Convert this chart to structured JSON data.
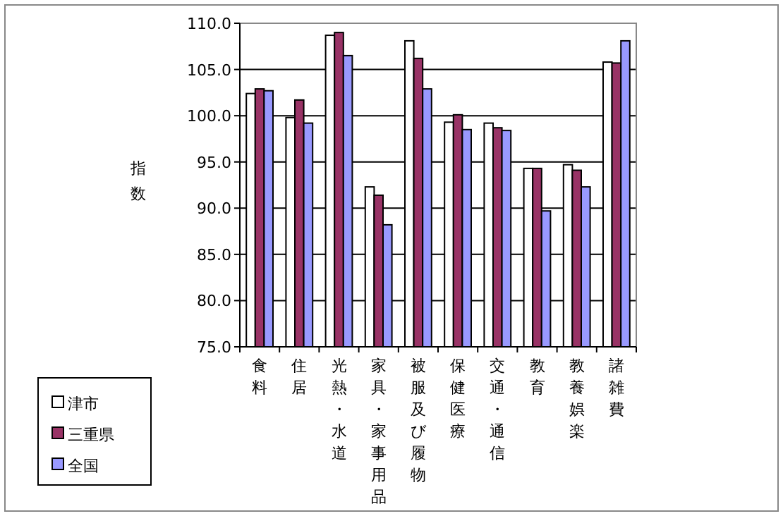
{
  "chart_data": {
    "type": "bar",
    "ylabel": "指数",
    "categories": [
      "食料",
      "住居",
      "光熱・水道",
      "家具・家事用品",
      "被服及び履物",
      "保健医療",
      "交通・通信",
      "教育",
      "教養娯楽",
      "諸雑費"
    ],
    "series": [
      {
        "name": "津市",
        "color": "#ffffff",
        "values": [
          102.4,
          99.8,
          108.7,
          92.3,
          108.1,
          99.3,
          99.2,
          94.3,
          94.7,
          105.8
        ]
      },
      {
        "name": "三重県",
        "color": "#993366",
        "values": [
          102.9,
          101.7,
          109.0,
          91.4,
          106.2,
          100.1,
          98.7,
          94.3,
          94.1,
          105.7
        ]
      },
      {
        "name": "全国",
        "color": "#9999ff",
        "values": [
          102.7,
          99.2,
          106.5,
          88.2,
          102.9,
          98.5,
          98.4,
          89.7,
          92.3,
          108.1
        ]
      }
    ],
    "ylim": [
      75,
      110
    ],
    "yticks": [
      {
        "value": 75,
        "label": "75.0"
      },
      {
        "value": 80,
        "label": "80.0"
      },
      {
        "value": 85,
        "label": "85.0"
      },
      {
        "value": 90,
        "label": "90.0"
      },
      {
        "value": 95,
        "label": "95.0"
      },
      {
        "value": 100,
        "label": "100.0"
      },
      {
        "value": 105,
        "label": "105.0"
      },
      {
        "value": 110,
        "label": "110.0"
      }
    ],
    "grid": "y",
    "legend": "bottom left"
  }
}
